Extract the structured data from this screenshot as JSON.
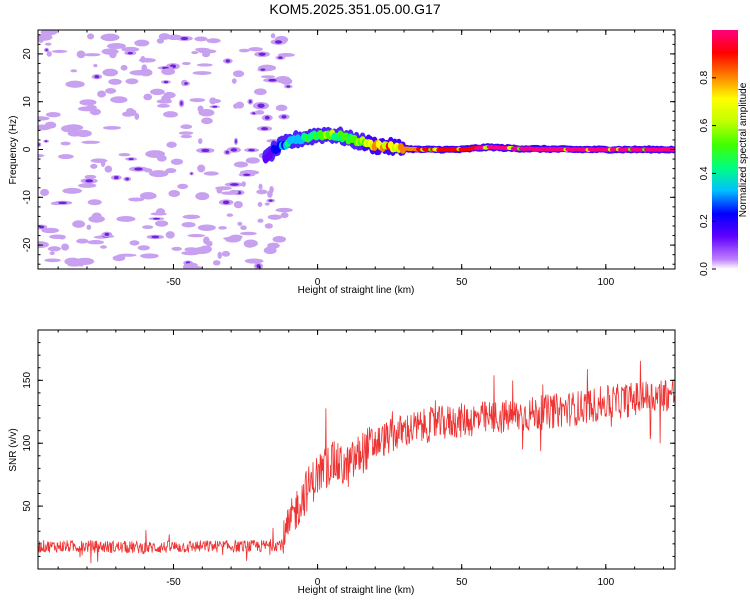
{
  "title": "KOM5.2025.351.05.00.G17",
  "chart_data": [
    {
      "type": "heatmap",
      "title": "KOM5.2025.351.05.00.G17",
      "xlabel": "Height of straight line (km)",
      "ylabel": "Frequency (Hz)",
      "xlim": [
        -97,
        124
      ],
      "ylim": [
        -25,
        25
      ],
      "xticks": [
        -50,
        0,
        50,
        100
      ],
      "yticks": [
        -20,
        -10,
        0,
        10,
        20
      ],
      "colorbar": {
        "label": "Normalized spectral amplitude",
        "range": [
          0,
          1
        ],
        "ticks": [
          "0.0",
          "0.2",
          "0.4",
          "0.6",
          "0.8"
        ],
        "colormap": [
          "#ffffff",
          "#c080ff",
          "#6000ff",
          "#0000ff",
          "#00c0ff",
          "#00ff80",
          "#40ff00",
          "#c0ff00",
          "#ffff00",
          "#ff8000",
          "#ff0000",
          "#ff0080"
        ]
      },
      "ridge": {
        "description": "dominant frequency track",
        "height_km": [
          -18,
          -15,
          -12,
          -8,
          -4,
          0,
          4,
          8,
          12,
          16,
          20,
          25,
          30,
          35,
          40,
          45,
          50,
          55,
          60,
          65,
          70,
          80,
          90,
          100,
          110,
          124
        ],
        "frequency_hz": [
          -2,
          0,
          1,
          2,
          2.5,
          3,
          3.2,
          2.8,
          2,
          1.5,
          0.8,
          0.6,
          0.2,
          0,
          0,
          0,
          0,
          0.3,
          0.5,
          0.3,
          0.2,
          0.1,
          0,
          0,
          0,
          0
        ],
        "amplitude": [
          0.1,
          0.2,
          0.3,
          0.35,
          0.45,
          0.5,
          0.55,
          0.5,
          0.5,
          0.6,
          0.75,
          0.8,
          0.8,
          0.85,
          0.9,
          0.9,
          0.9,
          0.95,
          0.95,
          0.95,
          0.95,
          0.95,
          0.95,
          0.95,
          0.95,
          0.95
        ]
      },
      "noise_region": {
        "height_km": [
          -97,
          -15
        ],
        "frequency_hz": [
          -25,
          25
        ],
        "amplitude": 0.15
      }
    },
    {
      "type": "line",
      "xlabel": "Height of straight line (km)",
      "ylabel": "SNR (v/v)",
      "xlim": [
        -97,
        124
      ],
      "ylim": [
        0,
        190
      ],
      "xticks": [
        -50,
        0,
        50,
        100
      ],
      "yticks": [
        50,
        100,
        150
      ],
      "color": "#ee3333",
      "series": [
        {
          "name": "SNR",
          "x": [
            -97,
            -80,
            -60,
            -40,
            -20,
            -12,
            -8,
            -4,
            0,
            5,
            10,
            15,
            20,
            30,
            40,
            50,
            60,
            70,
            80,
            90,
            100,
            110,
            124
          ],
          "y": [
            18,
            18,
            17,
            18,
            18,
            20,
            45,
            62,
            75,
            85,
            80,
            92,
            100,
            110,
            115,
            118,
            120,
            122,
            125,
            128,
            132,
            135,
            140
          ]
        }
      ]
    }
  ]
}
